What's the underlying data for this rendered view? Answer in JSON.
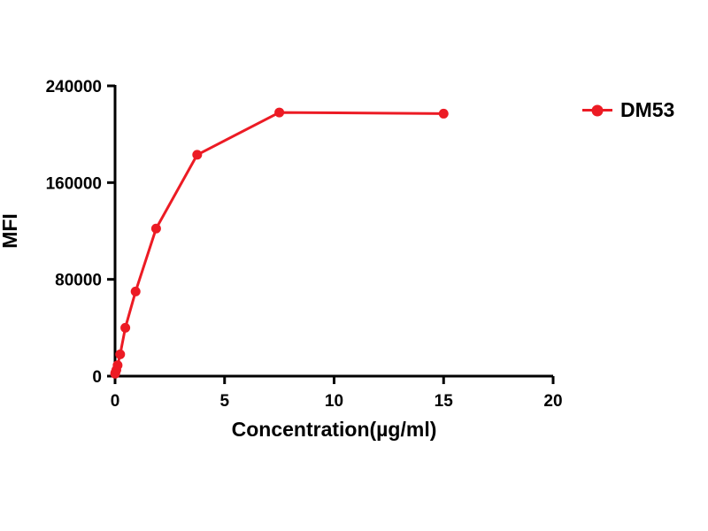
{
  "accent_color": "#EC1B24",
  "background_color": "#FFFFFF",
  "legend": {
    "label": "DM53"
  },
  "chart_data": {
    "type": "line",
    "title": "",
    "xlabel": "Concentration(µg/ml)",
    "ylabel": "MFI",
    "xlim": [
      0,
      20
    ],
    "ylim": [
      0,
      240000
    ],
    "xticks": [
      0,
      5,
      10,
      15,
      20
    ],
    "yticks": [
      0,
      80000,
      160000,
      240000
    ],
    "grid": false,
    "legend_position": "right",
    "series": [
      {
        "name": "DM53",
        "color": "#EC1B24",
        "marker": "circle",
        "x": [
          0.0037,
          0.0146,
          0.0586,
          0.117,
          0.234,
          0.469,
          0.938,
          1.875,
          3.75,
          7.5,
          15
        ],
        "y": [
          2000,
          2800,
          5000,
          9000,
          18000,
          40000,
          70000,
          122000,
          183000,
          218000,
          217000
        ]
      }
    ]
  }
}
